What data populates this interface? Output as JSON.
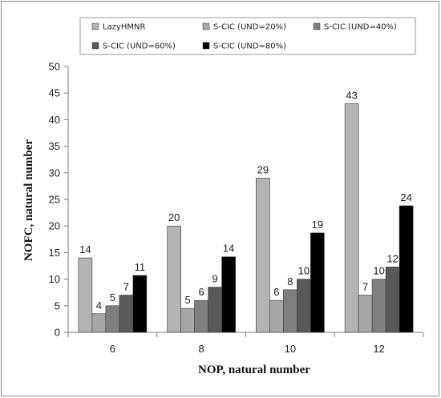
{
  "chart_data": {
    "type": "bar",
    "title": "",
    "xlabel": "NOP, natural number",
    "ylabel": "NOFC, natural number",
    "categories": [
      "6",
      "8",
      "10",
      "12"
    ],
    "ylim": [
      0,
      50
    ],
    "yticks": [
      0,
      5,
      10,
      15,
      20,
      25,
      30,
      35,
      40,
      45,
      50
    ],
    "grid": false,
    "legend_position": "top",
    "series": [
      {
        "name": "LazyHMNR",
        "color": "#b3b3b3",
        "values": [
          14,
          20,
          29,
          43
        ],
        "labels": [
          "14",
          "20",
          "29",
          "43"
        ]
      },
      {
        "name": "S-CIC (UND=20%)",
        "color": "#a6a6a6",
        "values": [
          3.5,
          4.5,
          6,
          7
        ],
        "labels": [
          "4",
          "5",
          "6",
          "7"
        ]
      },
      {
        "name": "S-CIC (UND=40%)",
        "color": "#7f7f7f",
        "values": [
          5,
          6,
          8,
          10
        ],
        "labels": [
          "5",
          "6",
          "8",
          "10"
        ]
      },
      {
        "name": "S-CIC (UND=60%)",
        "color": "#595959",
        "values": [
          7,
          8.5,
          10,
          12.3
        ],
        "labels": [
          "7",
          "9",
          "10",
          "12"
        ]
      },
      {
        "name": "S-CIC (UND=80%)",
        "color": "#000000",
        "values": [
          10.7,
          14.2,
          18.7,
          23.8
        ],
        "labels": [
          "11",
          "14",
          "19",
          "24"
        ]
      }
    ]
  }
}
